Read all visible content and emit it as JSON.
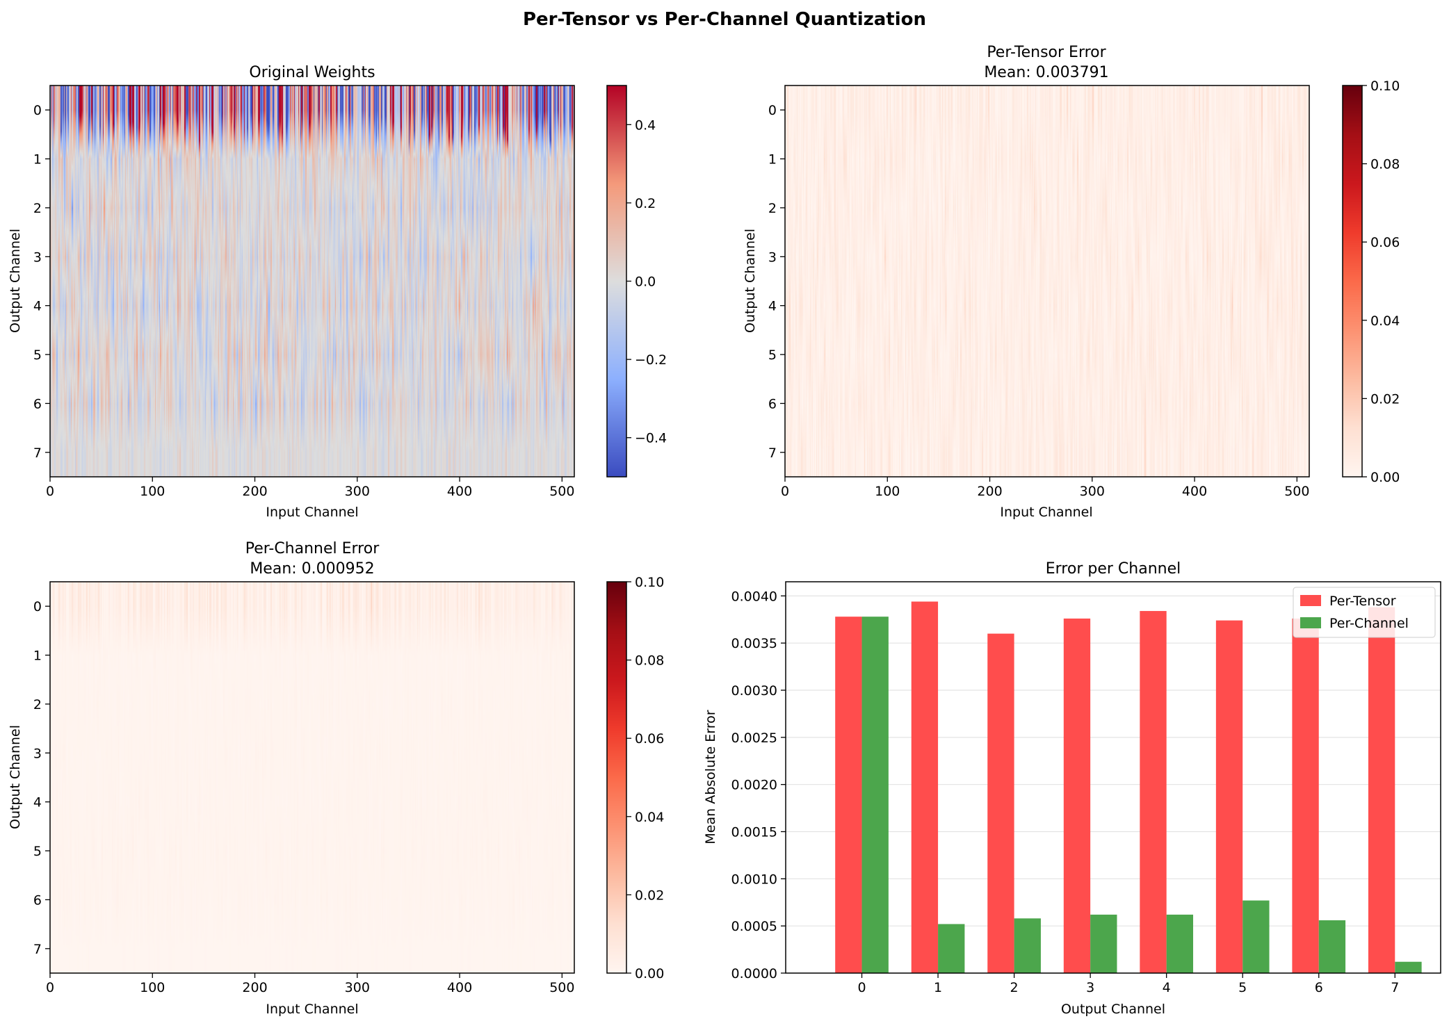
{
  "suptitle": "Per-Tensor vs Per-Channel Quantization",
  "chart_data": [
    {
      "type": "heatmap",
      "title": "Original Weights",
      "subtitle": "",
      "xlabel": "Input Channel",
      "ylabel": "Output Channel",
      "colormap": "coolwarm",
      "rows": 8,
      "cols": 512,
      "x_ticks": [
        0,
        100,
        200,
        300,
        400,
        500
      ],
      "y_ticks": [
        0,
        1,
        2,
        3,
        4,
        5,
        6,
        7
      ],
      "vmin": -0.5,
      "vmax": 0.5,
      "colorbar_ticks": [
        -0.4,
        -0.2,
        0.0,
        0.2,
        0.4
      ],
      "colorbar_tick_labels": [
        "−0.4",
        "−0.2",
        "0.0",
        "0.2",
        "0.4"
      ],
      "row_std": [
        0.45,
        0.08,
        0.08,
        0.08,
        0.08,
        0.08,
        0.08,
        0.03
      ]
    },
    {
      "type": "heatmap",
      "title": "Per-Tensor Error",
      "subtitle": "Mean: 0.003791",
      "xlabel": "Input Channel",
      "ylabel": "Output Channel",
      "colormap": "Reds",
      "rows": 8,
      "cols": 512,
      "x_ticks": [
        0,
        100,
        200,
        300,
        400,
        500
      ],
      "y_ticks": [
        0,
        1,
        2,
        3,
        4,
        5,
        6,
        7
      ],
      "vmin": 0.0,
      "vmax": 0.1,
      "colorbar_ticks": [
        0.0,
        0.02,
        0.04,
        0.06,
        0.08,
        0.1
      ],
      "colorbar_tick_labels": [
        "0.00",
        "0.02",
        "0.04",
        "0.06",
        "0.08",
        "0.10"
      ],
      "row_mean": [
        0.00378,
        0.00394,
        0.0036,
        0.00376,
        0.00384,
        0.00374,
        0.00376,
        0.00388
      ]
    },
    {
      "type": "heatmap",
      "title": "Per-Channel Error",
      "subtitle": "Mean: 0.000952",
      "xlabel": "Input Channel",
      "ylabel": "Output Channel",
      "colormap": "Reds",
      "rows": 8,
      "cols": 512,
      "x_ticks": [
        0,
        100,
        200,
        300,
        400,
        500
      ],
      "y_ticks": [
        0,
        1,
        2,
        3,
        4,
        5,
        6,
        7
      ],
      "vmin": 0.0,
      "vmax": 0.1,
      "colorbar_ticks": [
        0.0,
        0.02,
        0.04,
        0.06,
        0.08,
        0.1
      ],
      "colorbar_tick_labels": [
        "0.00",
        "0.02",
        "0.04",
        "0.06",
        "0.08",
        "0.10"
      ],
      "row_mean": [
        0.00378,
        0.00052,
        0.00058,
        0.00062,
        0.00062,
        0.00077,
        0.00056,
        0.00012
      ]
    },
    {
      "type": "bar",
      "title": "Error per Channel",
      "xlabel": "Output Channel",
      "ylabel": "Mean Absolute Error",
      "categories": [
        "0",
        "1",
        "2",
        "3",
        "4",
        "5",
        "6",
        "7"
      ],
      "ylim": [
        0,
        0.00415
      ],
      "y_ticks": [
        0,
        0.0005,
        0.001,
        0.0015,
        0.002,
        0.0025,
        0.003,
        0.0035,
        0.004
      ],
      "y_tick_labels": [
        "0.0000",
        "0.0005",
        "0.0010",
        "0.0015",
        "0.0020",
        "0.0025",
        "0.0030",
        "0.0035",
        "0.0040"
      ],
      "grid": "y",
      "legend_position": "top-right",
      "series": [
        {
          "name": "Per-Tensor",
          "color": "#ff4d4d",
          "values": [
            0.00378,
            0.00394,
            0.0036,
            0.00376,
            0.00384,
            0.00374,
            0.00376,
            0.00388
          ]
        },
        {
          "name": "Per-Channel",
          "color": "#4ca64c",
          "values": [
            0.00378,
            0.00052,
            0.00058,
            0.00062,
            0.00062,
            0.00077,
            0.00056,
            0.00012
          ]
        }
      ]
    }
  ]
}
